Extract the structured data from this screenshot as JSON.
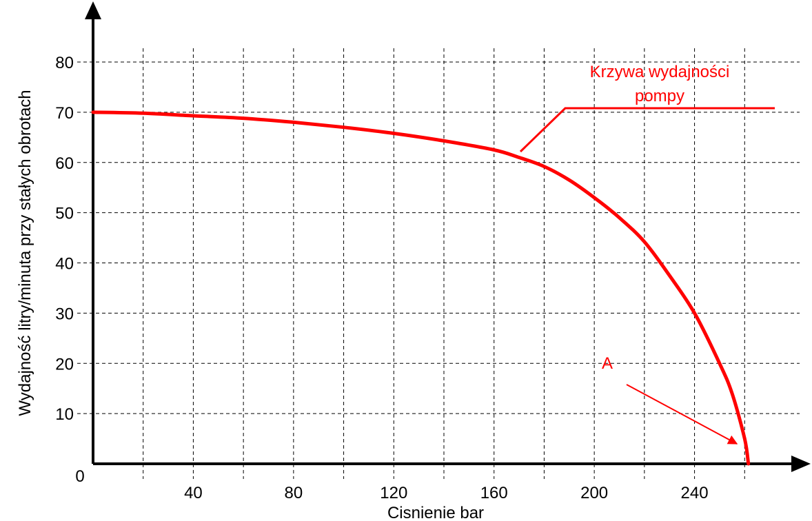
{
  "chart_data": {
    "type": "line",
    "xlabel": "Cisnienie bar",
    "ylabel": "Wydajność litry/minuta przy stałych obrotach",
    "xlim": [
      0,
      280
    ],
    "ylim": [
      0,
      80
    ],
    "x_ticks": [
      40,
      80,
      120,
      160,
      200,
      240
    ],
    "y_ticks": [
      10,
      20,
      30,
      40,
      50,
      60,
      70,
      80
    ],
    "origin_label": "0",
    "grid": true,
    "series": [
      {
        "name": "Krzywa wydajności pompy",
        "color": "#ff0000",
        "points": [
          [
            0,
            70
          ],
          [
            20,
            69.8
          ],
          [
            40,
            69.3
          ],
          [
            60,
            68.8
          ],
          [
            80,
            68
          ],
          [
            100,
            67
          ],
          [
            120,
            65.8
          ],
          [
            140,
            64.3
          ],
          [
            160,
            62.5
          ],
          [
            170,
            61
          ],
          [
            180,
            59.2
          ],
          [
            190,
            56.5
          ],
          [
            200,
            53
          ],
          [
            210,
            49
          ],
          [
            220,
            44.2
          ],
          [
            230,
            37.5
          ],
          [
            240,
            30
          ],
          [
            250,
            20
          ],
          [
            255,
            14
          ],
          [
            260,
            5
          ],
          [
            261.5,
            0
          ]
        ]
      }
    ],
    "annotations": [
      {
        "name": "curve-label",
        "lines": [
          "Krzywa wydajności",
          "pompy"
        ],
        "color": "#ff0000"
      },
      {
        "name": "point-a",
        "text": "A",
        "color": "#ff0000"
      }
    ]
  }
}
